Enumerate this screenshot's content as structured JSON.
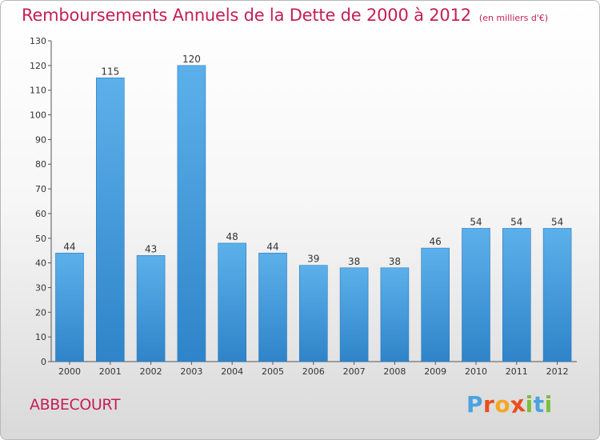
{
  "title": "Remboursements Annuels de la Dette de 2000 à 2012",
  "unit_note": "(en milliers d'€)",
  "commune": "ABBECOURT",
  "logo": {
    "text": "Proxiti",
    "letters": [
      "P",
      "r",
      "o",
      "x",
      "i",
      "t",
      "i"
    ],
    "colors": [
      "#4aa3df",
      "#e94e1b",
      "#f5a623",
      "#e94e1b",
      "#7bbf3a",
      "#4aa3df",
      "#7bbf3a"
    ]
  },
  "colors": {
    "bar": "#3d92d8",
    "bar_top": "#5cb0ea",
    "title": "#c51e57"
  },
  "chart_data": {
    "type": "bar",
    "title": "Remboursements Annuels de la Dette de 2000 à 2012",
    "ylabel": "",
    "xlabel": "",
    "categories": [
      "2000",
      "2001",
      "2002",
      "2003",
      "2004",
      "2005",
      "2006",
      "2007",
      "2008",
      "2009",
      "2010",
      "2011",
      "2012"
    ],
    "values": [
      44,
      115,
      43,
      120,
      48,
      44,
      39,
      38,
      38,
      46,
      54,
      54,
      54
    ],
    "ylim": [
      0,
      130
    ],
    "yticks": [
      0,
      10,
      20,
      30,
      40,
      50,
      60,
      70,
      80,
      90,
      100,
      110,
      120,
      130
    ],
    "grid": false,
    "data_labels": true
  }
}
